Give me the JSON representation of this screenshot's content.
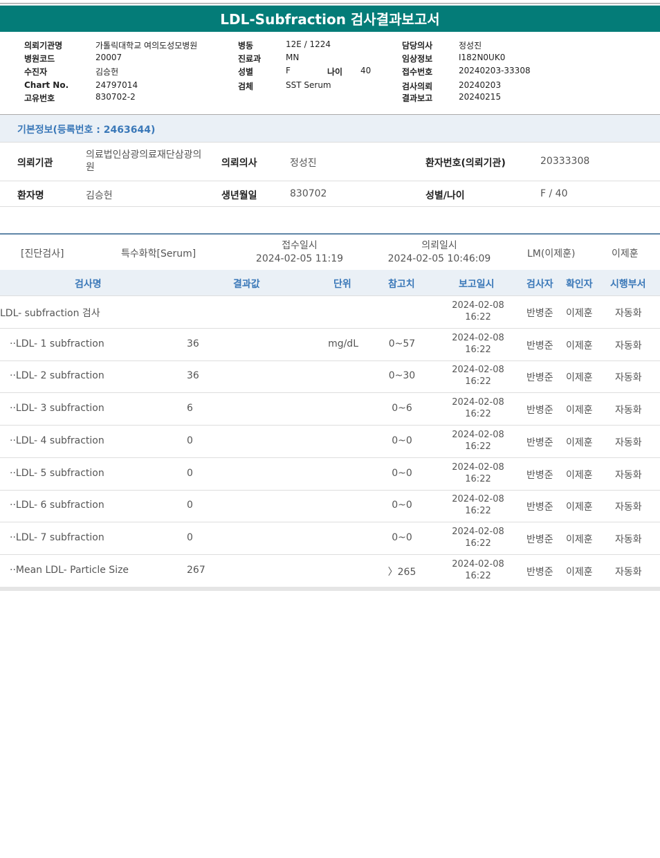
{
  "title": "LDL-Subfraction 검사결과보고서",
  "meta": {
    "col1": [
      [
        "의뢰기관명",
        "가톨릭대학교 여의도성모병원"
      ],
      [
        "병원코드",
        "20007"
      ],
      [
        "수진자",
        "김승헌"
      ],
      [
        "Chart No.",
        "24797014"
      ],
      [
        "고유번호",
        "830702-2"
      ]
    ],
    "col2": [
      [
        "병동",
        "12E / 1224"
      ],
      [
        "진료과",
        "MN"
      ],
      [
        "성별",
        "F"
      ],
      [
        "검체",
        "SST Serum"
      ]
    ],
    "age_label": "나이",
    "age": "40",
    "col3": [
      [
        "담당의사",
        "정성진"
      ],
      [
        "임상정보",
        "I182N0UK0"
      ],
      [
        "접수번호",
        "20240203-33308"
      ],
      [
        "검사의뢰",
        "20240203"
      ],
      [
        "결과보고",
        "20240215"
      ]
    ]
  },
  "basic": {
    "header": "기본정보(등록번호 : 2463644)",
    "inst_label": "의뢰기관",
    "inst": "의료법인삼광의료재단삼광의원",
    "doc_label": "의뢰의사",
    "doc": "정성진",
    "pno_label": "환자번호(의뢰기관)",
    "pno": "20333308",
    "name_label": "환자명",
    "name": "김승헌",
    "dob_label": "생년월일",
    "dob": "830702",
    "sex_label": "성별/나이",
    "sex": "F / 40"
  },
  "group": {
    "category": "[진단검사]",
    "sub": "특수화학[Serum]",
    "recv_label": "접수일시",
    "recv": "2024-02-05 11:19",
    "req_label": "의뢰일시",
    "req": "2024-02-05 10:46:09",
    "lm": "LM(이제훈)",
    "confirmer": "이제훈"
  },
  "columns": [
    "검사명",
    "결과값",
    "단위",
    "참고치",
    "보고일시",
    "검사자",
    "확인자",
    "시행부서"
  ],
  "rows": [
    {
      "name": "LDL- subfraction 검사",
      "result": "",
      "unit": "",
      "ref": "",
      "date": "2024-02-08",
      "time": "16:22",
      "tester": "반병준",
      "confirmer": "이제훈",
      "dept": "자동화"
    },
    {
      "name": "··LDL- 1 subfraction",
      "result": "36",
      "unit": "mg/dL",
      "ref": "0~57",
      "date": "2024-02-08",
      "time": "16:22",
      "tester": "반병준",
      "confirmer": "이제훈",
      "dept": "자동화"
    },
    {
      "name": "··LDL- 2 subfraction",
      "result": "36",
      "unit": "",
      "ref": "0~30",
      "date": "2024-02-08",
      "time": "16:22",
      "tester": "반병준",
      "confirmer": "이제훈",
      "dept": "자동화"
    },
    {
      "name": "··LDL- 3 subfraction",
      "result": "6",
      "unit": "",
      "ref": "0~6",
      "date": "2024-02-08",
      "time": "16:22",
      "tester": "반병준",
      "confirmer": "이제훈",
      "dept": "자동화"
    },
    {
      "name": "··LDL- 4 subfraction",
      "result": "0",
      "unit": "",
      "ref": "0~0",
      "date": "2024-02-08",
      "time": "16:22",
      "tester": "반병준",
      "confirmer": "이제훈",
      "dept": "자동화"
    },
    {
      "name": "··LDL- 5 subfraction",
      "result": "0",
      "unit": "",
      "ref": "0~0",
      "date": "2024-02-08",
      "time": "16:22",
      "tester": "반병준",
      "confirmer": "이제훈",
      "dept": "자동화"
    },
    {
      "name": "··LDL- 6 subfraction",
      "result": "0",
      "unit": "",
      "ref": "0~0",
      "date": "2024-02-08",
      "time": "16:22",
      "tester": "반병준",
      "confirmer": "이제훈",
      "dept": "자동화"
    },
    {
      "name": "··LDL- 7 subfraction",
      "result": "0",
      "unit": "",
      "ref": "0~0",
      "date": "2024-02-08",
      "time": "16:22",
      "tester": "반병준",
      "confirmer": "이제훈",
      "dept": "자동화"
    },
    {
      "name": "··Mean LDL- Particle Size",
      "result": "267",
      "unit": "",
      "ref": "〉265",
      "date": "2024-02-08",
      "time": "16:22",
      "tester": "반병준",
      "confirmer": "이제훈",
      "dept": "자동화"
    }
  ]
}
